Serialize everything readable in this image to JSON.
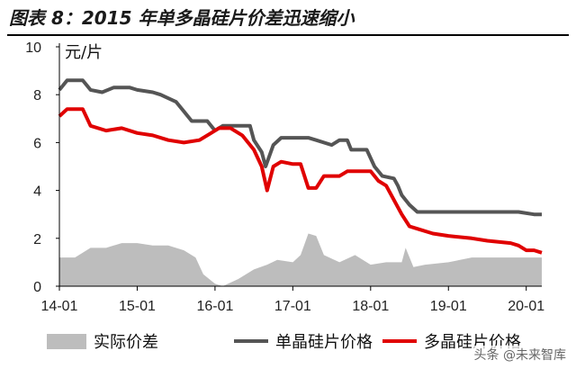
{
  "figure": {
    "title": "图表 8：2015 年单多晶硅片价差迅速缩小",
    "watermark": "头条 @未来智库"
  },
  "colors": {
    "mono": "#555555",
    "poly": "#e00000",
    "spread": "#bdbdbd",
    "axis": "#000000"
  },
  "chart_data": {
    "type": "line",
    "ylabel": "元/片",
    "xlabel": "",
    "ylim": [
      0,
      10
    ],
    "yticks": [
      "0",
      "2",
      "4",
      "6",
      "8",
      "10"
    ],
    "x_ticks": [
      "14-01",
      "15-01",
      "16-01",
      "17-01",
      "18-01",
      "19-01",
      "20-01"
    ],
    "legend_position": "bottom",
    "series": [
      {
        "name": "实际价差",
        "kind": "area",
        "values": [
          [
            2014.0,
            1.2
          ],
          [
            2014.2,
            1.2
          ],
          [
            2014.4,
            1.6
          ],
          [
            2014.6,
            1.6
          ],
          [
            2014.8,
            1.8
          ],
          [
            2015.0,
            1.8
          ],
          [
            2015.2,
            1.7
          ],
          [
            2015.4,
            1.7
          ],
          [
            2015.6,
            1.5
          ],
          [
            2015.75,
            1.2
          ],
          [
            2015.85,
            0.5
          ],
          [
            2016.0,
            0.1
          ],
          [
            2016.1,
            0.0
          ],
          [
            2016.3,
            0.3
          ],
          [
            2016.5,
            0.7
          ],
          [
            2016.67,
            0.9
          ],
          [
            2016.8,
            1.1
          ],
          [
            2017.0,
            1.0
          ],
          [
            2017.1,
            1.3
          ],
          [
            2017.2,
            2.2
          ],
          [
            2017.3,
            2.1
          ],
          [
            2017.4,
            1.3
          ],
          [
            2017.6,
            1.0
          ],
          [
            2017.8,
            1.3
          ],
          [
            2018.0,
            0.9
          ],
          [
            2018.2,
            1.0
          ],
          [
            2018.4,
            1.0
          ],
          [
            2018.45,
            1.6
          ],
          [
            2018.55,
            0.8
          ],
          [
            2018.7,
            0.9
          ],
          [
            2019.0,
            1.0
          ],
          [
            2019.3,
            1.2
          ],
          [
            2019.6,
            1.2
          ],
          [
            2020.0,
            1.2
          ],
          [
            2020.2,
            1.2
          ]
        ]
      },
      {
        "name": "单晶硅片价格",
        "kind": "line",
        "values": [
          [
            2014.0,
            8.2
          ],
          [
            2014.1,
            8.6
          ],
          [
            2014.3,
            8.6
          ],
          [
            2014.4,
            8.2
          ],
          [
            2014.55,
            8.1
          ],
          [
            2014.7,
            8.3
          ],
          [
            2014.9,
            8.3
          ],
          [
            2015.0,
            8.2
          ],
          [
            2015.2,
            8.1
          ],
          [
            2015.3,
            8.0
          ],
          [
            2015.5,
            7.7
          ],
          [
            2015.6,
            7.3
          ],
          [
            2015.7,
            6.9
          ],
          [
            2015.9,
            6.9
          ],
          [
            2016.0,
            6.5
          ],
          [
            2016.1,
            6.7
          ],
          [
            2016.3,
            6.7
          ],
          [
            2016.45,
            6.7
          ],
          [
            2016.5,
            6.1
          ],
          [
            2016.6,
            5.6
          ],
          [
            2016.65,
            5.0
          ],
          [
            2016.75,
            5.9
          ],
          [
            2016.85,
            6.2
          ],
          [
            2017.0,
            6.2
          ],
          [
            2017.2,
            6.2
          ],
          [
            2017.3,
            6.1
          ],
          [
            2017.5,
            5.9
          ],
          [
            2017.6,
            6.1
          ],
          [
            2017.7,
            6.1
          ],
          [
            2017.75,
            5.7
          ],
          [
            2017.95,
            5.7
          ],
          [
            2018.05,
            5.0
          ],
          [
            2018.15,
            4.6
          ],
          [
            2018.3,
            4.5
          ],
          [
            2018.35,
            4.2
          ],
          [
            2018.4,
            3.8
          ],
          [
            2018.5,
            3.4
          ],
          [
            2018.6,
            3.1
          ],
          [
            2018.8,
            3.1
          ],
          [
            2019.0,
            3.1
          ],
          [
            2019.5,
            3.1
          ],
          [
            2019.9,
            3.1
          ],
          [
            2020.1,
            3.0
          ],
          [
            2020.2,
            3.0
          ]
        ]
      },
      {
        "name": "多晶硅片价格",
        "kind": "line",
        "values": [
          [
            2014.0,
            7.1
          ],
          [
            2014.1,
            7.4
          ],
          [
            2014.3,
            7.4
          ],
          [
            2014.4,
            6.7
          ],
          [
            2014.6,
            6.5
          ],
          [
            2014.8,
            6.6
          ],
          [
            2015.0,
            6.4
          ],
          [
            2015.2,
            6.3
          ],
          [
            2015.4,
            6.1
          ],
          [
            2015.6,
            6.0
          ],
          [
            2015.8,
            6.1
          ],
          [
            2015.95,
            6.4
          ],
          [
            2016.05,
            6.6
          ],
          [
            2016.2,
            6.6
          ],
          [
            2016.35,
            6.3
          ],
          [
            2016.5,
            5.7
          ],
          [
            2016.6,
            5.0
          ],
          [
            2016.67,
            4.0
          ],
          [
            2016.75,
            5.0
          ],
          [
            2016.85,
            5.2
          ],
          [
            2017.0,
            5.1
          ],
          [
            2017.1,
            5.1
          ],
          [
            2017.2,
            4.1
          ],
          [
            2017.3,
            4.1
          ],
          [
            2017.4,
            4.6
          ],
          [
            2017.6,
            4.6
          ],
          [
            2017.7,
            4.8
          ],
          [
            2018.0,
            4.8
          ],
          [
            2018.1,
            4.4
          ],
          [
            2018.2,
            4.2
          ],
          [
            2018.3,
            3.6
          ],
          [
            2018.4,
            3.0
          ],
          [
            2018.5,
            2.5
          ],
          [
            2018.6,
            2.4
          ],
          [
            2018.8,
            2.2
          ],
          [
            2019.0,
            2.1
          ],
          [
            2019.3,
            2.0
          ],
          [
            2019.5,
            1.9
          ],
          [
            2019.8,
            1.8
          ],
          [
            2019.9,
            1.7
          ],
          [
            2020.0,
            1.5
          ],
          [
            2020.1,
            1.5
          ],
          [
            2020.2,
            1.4
          ]
        ]
      }
    ]
  }
}
